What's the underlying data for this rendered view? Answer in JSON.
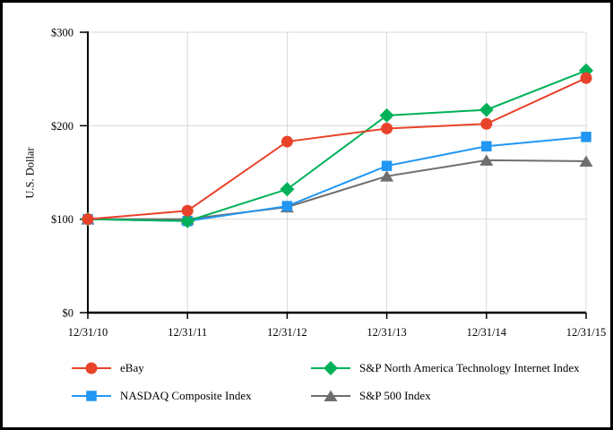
{
  "chart_data": {
    "type": "line",
    "title": "",
    "ylabel": "U.S. Dollar",
    "xlabel": "",
    "categories": [
      "12/31/10",
      "12/31/11",
      "12/31/12",
      "12/31/13",
      "12/31/14",
      "12/31/15"
    ],
    "ylim": [
      0,
      300
    ],
    "yticks": [
      {
        "value": 0,
        "label": "$0"
      },
      {
        "value": 100,
        "label": "$100"
      },
      {
        "value": 200,
        "label": "$200"
      },
      {
        "value": 300,
        "label": "$300"
      }
    ],
    "grid": true,
    "grid_color": "#d9d9d9",
    "axis_color": "#000000",
    "legend_position": "bottom",
    "series": [
      {
        "name": "eBay",
        "color": "#e8432a",
        "marker": "circle",
        "values": [
          100,
          109,
          183,
          197,
          202,
          251
        ]
      },
      {
        "name": "S&P North America Technology Internet Index",
        "color": "#00b159",
        "marker": "diamond",
        "values": [
          100,
          98,
          132,
          211,
          217,
          259
        ]
      },
      {
        "name": "NASDAQ Composite Index",
        "color": "#2196f3",
        "marker": "square",
        "values": [
          100,
          98,
          114,
          157,
          178,
          188
        ]
      },
      {
        "name": "S&P 500 Index",
        "color": "#6e6e6e",
        "marker": "triangle",
        "values": [
          100,
          100,
          113,
          146,
          163,
          162
        ]
      }
    ],
    "draw_order": [
      3,
      2,
      1,
      0
    ]
  }
}
